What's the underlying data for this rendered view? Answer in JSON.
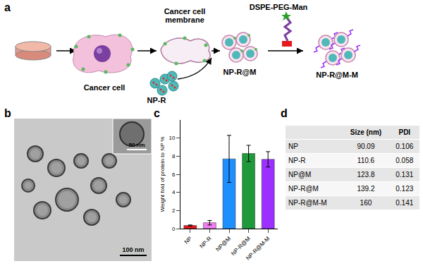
{
  "panel_labels": [
    "a",
    "b",
    "c",
    "d"
  ],
  "diagram": {
    "cell_label": "Cancer cell",
    "membrane_label": [
      "Cancer cell",
      "membrane"
    ],
    "np_label": "NP-R",
    "coated_label": "NP-R@M",
    "ligand_label": "DSPE-PEG-Man",
    "final_label": "NP-R@M-M"
  },
  "image": {
    "scale_bar": "100 nm",
    "inset_scale_bar": "50 nm"
  },
  "chart_data": {
    "type": "bar",
    "y_label": "Weight fold of protein to NP %",
    "categories": [
      "NP",
      "NP-R",
      "NP@M",
      "NP-R@M",
      "NP-R@M-M"
    ],
    "values": [
      0.35,
      0.65,
      7.7,
      8.3,
      7.65
    ],
    "errors": [
      0.05,
      0.25,
      2.6,
      0.9,
      0.85
    ],
    "colors": [
      "#e41a1c",
      "#f07ef0",
      "#1e8fff",
      "#1f9a3a",
      "#9b30ff"
    ],
    "ylim": [
      0,
      12
    ],
    "yticks": [
      0,
      2,
      4,
      6,
      8,
      10
    ],
    "grid": false
  },
  "table": {
    "header": [
      "Size (nm)",
      "PDI"
    ],
    "rows": [
      [
        "NP",
        "90.09",
        "0.106"
      ],
      [
        "NP-R",
        "110.6",
        "0.058"
      ],
      [
        "NP@M",
        "123.8",
        "0.131"
      ],
      [
        "NP-R@M",
        "139.2",
        "0.123"
      ],
      [
        "NP-R@M-M",
        "160",
        "0.141"
      ]
    ]
  }
}
